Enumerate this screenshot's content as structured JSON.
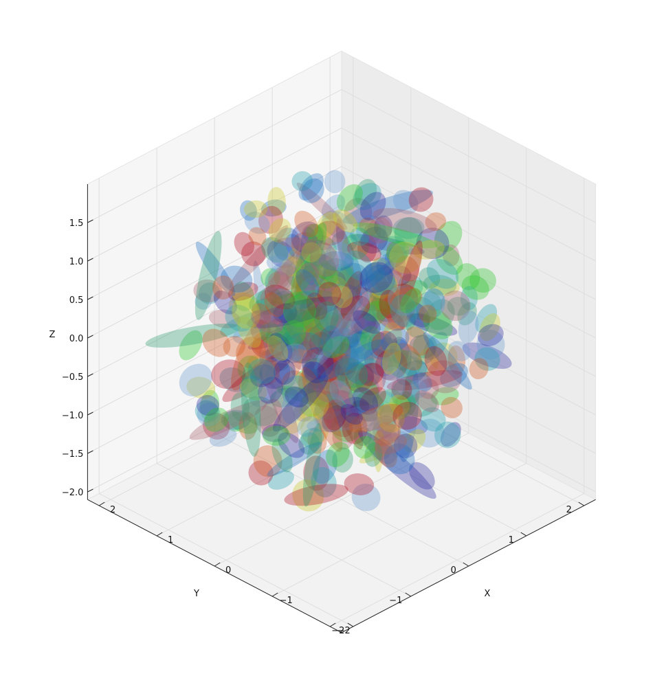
{
  "chart_data": {
    "type": "scatter3d",
    "title": "",
    "xlabel": "X",
    "ylabel": "Y",
    "zlabel": "Z",
    "xlim": [
      -2.2,
      2.2
    ],
    "ylim": [
      -2.2,
      2.2
    ],
    "zlim": [
      -2.1,
      2.0
    ],
    "x_ticks": [
      {
        "v": -2,
        "label": "−2"
      },
      {
        "v": -1,
        "label": "−1"
      },
      {
        "v": 0,
        "label": "0"
      },
      {
        "v": 1,
        "label": "1"
      },
      {
        "v": 2,
        "label": "2"
      }
    ],
    "y_ticks": [
      {
        "v": -2,
        "label": "−2"
      },
      {
        "v": -1,
        "label": "−1"
      },
      {
        "v": 0,
        "label": "0"
      },
      {
        "v": 1,
        "label": "1"
      },
      {
        "v": 2,
        "label": "2"
      }
    ],
    "z_ticks": [
      {
        "v": -2.0,
        "label": "−2.0"
      },
      {
        "v": -1.5,
        "label": "−1.5"
      },
      {
        "v": -1.0,
        "label": "−1.0"
      },
      {
        "v": -0.5,
        "label": "−0.5"
      },
      {
        "v": 0.0,
        "label": "0.0"
      },
      {
        "v": 0.5,
        "label": "0.5"
      },
      {
        "v": 1.0,
        "label": "1.0"
      },
      {
        "v": 1.5,
        "label": "1.5"
      }
    ],
    "grid": true,
    "colors": [
      "#2bc52b",
      "#b01226",
      "#c8c828",
      "#2a2aa0",
      "#1f6fbf",
      "#2a9a70",
      "#6a9ad0",
      "#a86070",
      "#d05a20",
      "#26a0b0"
    ],
    "ellipsoid_count": 520,
    "fill_opacity": 0.35
  }
}
